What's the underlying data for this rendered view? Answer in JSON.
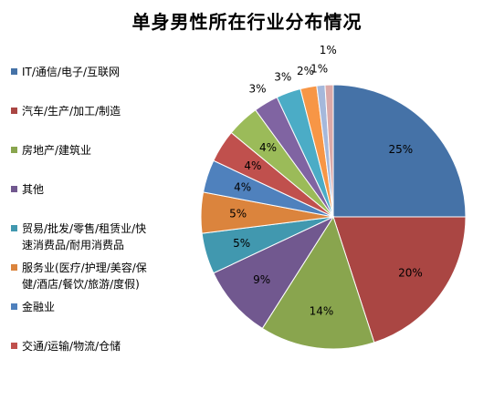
{
  "chart_data": {
    "type": "pie",
    "title": "单身男性所在行业分布情况",
    "categories": [
      "IT/通信/电子/互联网",
      "汽车/生产/加工/制造",
      "房地产/建筑业",
      "其他",
      "贸易/批发/零售/租赁业/快速消费品/耐用消费品",
      "服务业(医疗/护理/美容/保健/酒店/餐饮/旅游/度假)",
      "金融业",
      "交通/运输/物流/仓储",
      "",
      "",
      "",
      "",
      "",
      ""
    ],
    "values": [
      25,
      20,
      14,
      9,
      5,
      5,
      4,
      4,
      4,
      3,
      3,
      2,
      1,
      1
    ],
    "value_labels": [
      "25%",
      "20%",
      "14%",
      "9%",
      "5%",
      "5%",
      "4%",
      "4%",
      "4%",
      "3%",
      "3%",
      "2%",
      "1%",
      "1%"
    ],
    "colors": [
      "#4572A7",
      "#AA4643",
      "#89A54E",
      "#71588F",
      "#4198AF",
      "#DB843D",
      "#4F81BD",
      "#C0504D",
      "#9BBB59",
      "#8064A2",
      "#4BACC6",
      "#F79646",
      "#A5B8DB",
      "#DBA9A8"
    ],
    "legend_position": "left",
    "legend_entries": [
      "IT/通信/电子/互联网",
      "汽车/生产/加工/制造",
      "房地产/建筑业",
      "其他",
      "贸易/批发/零售/租赁业/快速消费品/耐用消费品",
      "服务业(医疗/护理/美容/保健/酒店/餐饮/旅游/度假)",
      "金融业",
      "交通/运输/物流/仓储"
    ],
    "legend_lines": [
      [
        "IT/通信/电子/互联网"
      ],
      [
        "汽车/生产/加工/制造"
      ],
      [
        "房地产/建筑业"
      ],
      [
        "其他"
      ],
      [
        "贸易/批发/零售/租赁业/快",
        "速消费品/耐用消费品"
      ],
      [
        "服务业(医疗/护理/美容/保",
        "健/酒店/餐饮/旅游/度假)"
      ],
      [
        "金融业"
      ],
      [
        "交通/运输/物流/仓储"
      ]
    ]
  }
}
